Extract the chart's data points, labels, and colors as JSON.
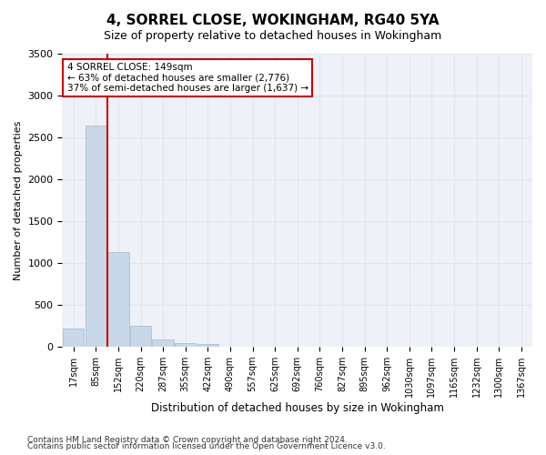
{
  "title": "4, SORREL CLOSE, WOKINGHAM, RG40 5YA",
  "subtitle": "Size of property relative to detached houses in Wokingham",
  "xlabel": "Distribution of detached houses by size in Wokingham",
  "ylabel": "Number of detached properties",
  "footnote1": "Contains HM Land Registry data © Crown copyright and database right 2024.",
  "footnote2": "Contains public sector information licensed under the Open Government Licence v3.0.",
  "bin_labels": [
    "17sqm",
    "85sqm",
    "152sqm",
    "220sqm",
    "287sqm",
    "355sqm",
    "422sqm",
    "490sqm",
    "557sqm",
    "625sqm",
    "692sqm",
    "760sqm",
    "827sqm",
    "895sqm",
    "962sqm",
    "1030sqm",
    "1097sqm",
    "1165sqm",
    "1232sqm",
    "1300sqm",
    "1367sqm"
  ],
  "bar_values": [
    220,
    2640,
    1130,
    255,
    90,
    50,
    30,
    0,
    0,
    0,
    0,
    0,
    0,
    0,
    0,
    0,
    0,
    0,
    0,
    0,
    0
  ],
  "bar_color": "#c8d8e8",
  "bar_edge_color": "#a0b8cc",
  "grid_color": "#dce6f0",
  "annotation_text_line1": "4 SORREL CLOSE: 149sqm",
  "annotation_text_line2": "← 63% of detached houses are smaller (2,776)",
  "annotation_text_line3": "37% of semi-detached houses are larger (1,637) →",
  "annotation_box_color": "#ffffff",
  "annotation_box_edge": "#cc0000",
  "red_line_color": "#cc0000",
  "red_line_x": 1.5,
  "ylim": [
    0,
    3500
  ],
  "yticks": [
    0,
    500,
    1000,
    1500,
    2000,
    2500,
    3000,
    3500
  ],
  "background_color": "#ffffff",
  "plot_bg_color": "#eef2f8"
}
